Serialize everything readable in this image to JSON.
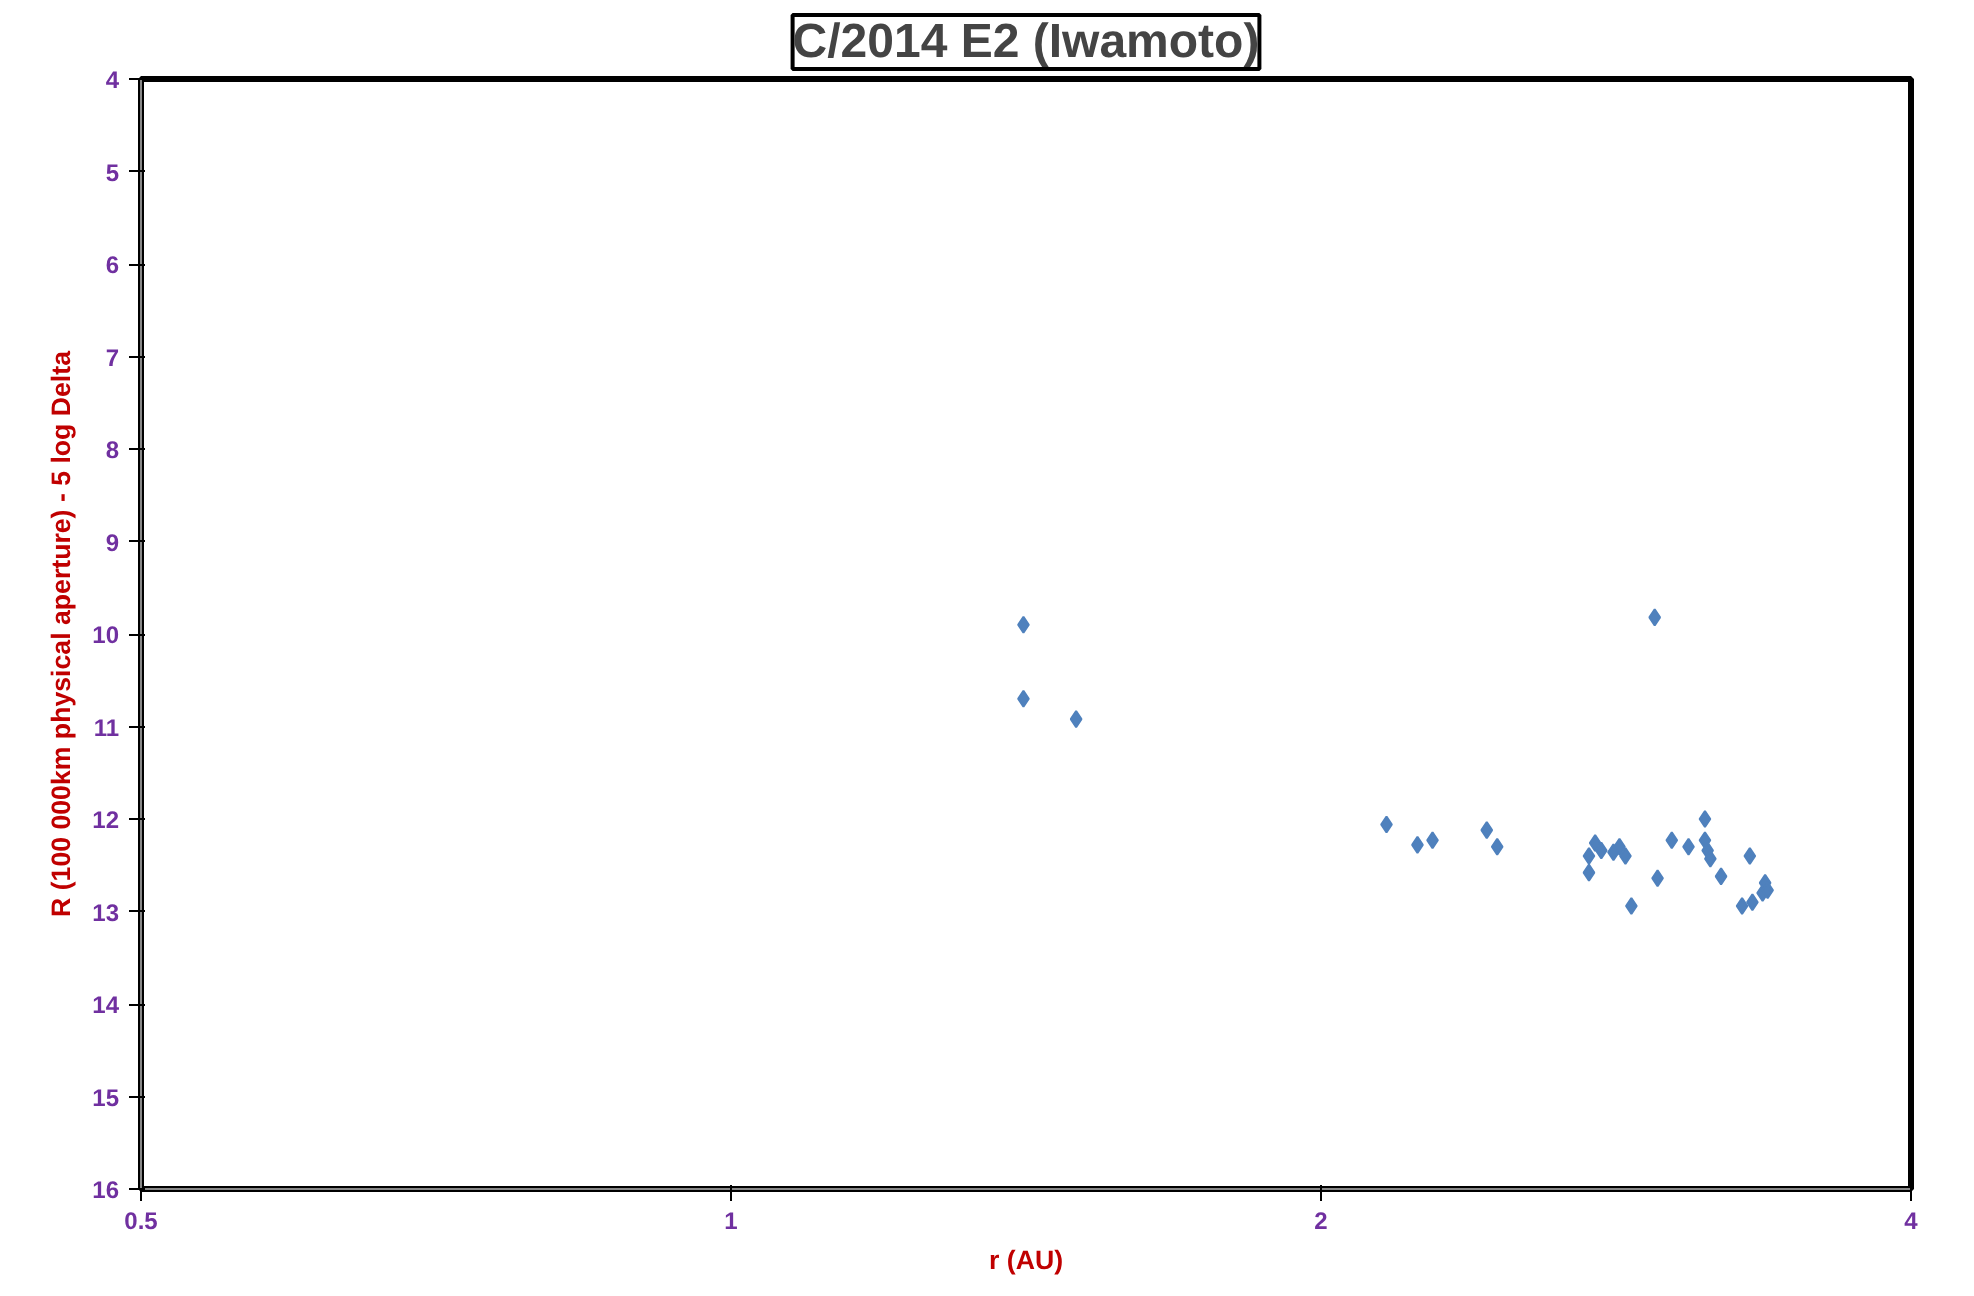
{
  "chart_data": {
    "type": "scatter",
    "title": "C/2014 E2 (Iwamoto)",
    "xlabel": "r (AU)",
    "ylabel": "R (100 000km physical aperture) - 5 log Delta",
    "x": [
      1.41,
      1.41,
      1.5,
      2.16,
      2.24,
      2.28,
      2.43,
      2.46,
      2.74,
      2.74,
      2.76,
      2.78,
      2.82,
      2.84,
      2.86,
      2.88,
      2.96,
      2.97,
      3.02,
      3.08,
      3.14,
      3.14,
      3.15,
      3.16,
      3.2,
      3.28,
      3.31,
      3.32,
      3.36,
      3.37,
      3.38
    ],
    "series": [
      {
        "color": "#4f81bd",
        "values": [
          9.9,
          10.7,
          10.92,
          12.06,
          12.28,
          12.23,
          12.12,
          12.3,
          12.58,
          12.4,
          12.26,
          12.34,
          12.36,
          12.3,
          12.4,
          12.94,
          9.82,
          12.64,
          12.23,
          12.3,
          12.0,
          12.23,
          12.34,
          12.43,
          12.62,
          12.94,
          12.4,
          12.9,
          12.8,
          12.69,
          12.77
        ]
      }
    ],
    "xlim": [
      0.5,
      4
    ],
    "ylim": [
      16,
      4
    ],
    "xticks": [
      0.5,
      1,
      2,
      4
    ],
    "yticks": [
      4,
      5,
      6,
      7,
      8,
      9,
      10,
      11,
      12,
      13,
      14,
      15,
      16
    ],
    "log": "x",
    "grid": false,
    "marker": "diamond"
  }
}
